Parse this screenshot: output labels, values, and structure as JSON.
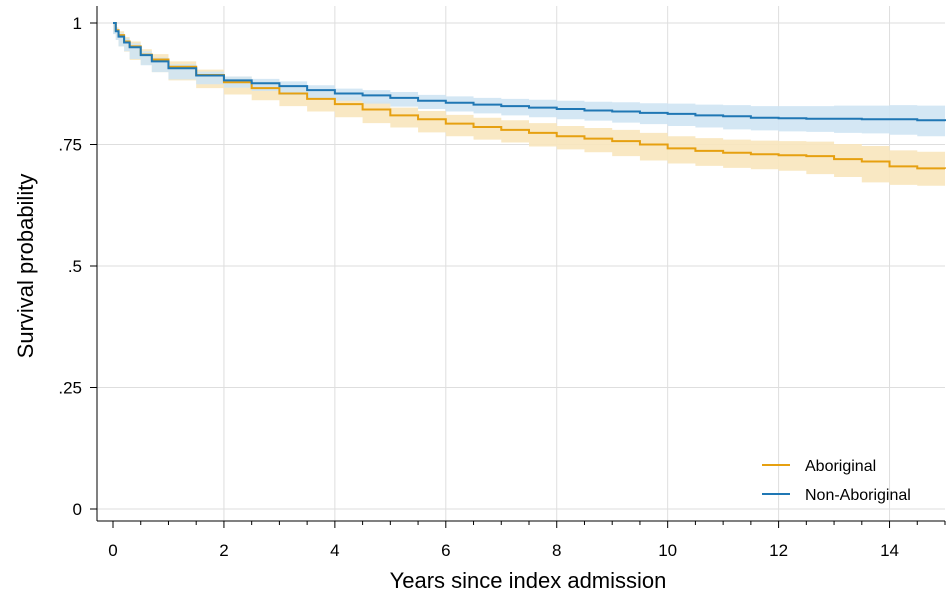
{
  "chart_data": {
    "type": "line",
    "title": "",
    "xlabel": "Years since index admission",
    "ylabel": "Survival probability",
    "xlim": [
      0,
      15
    ],
    "ylim": [
      0,
      1
    ],
    "x_ticks": [
      0,
      2,
      4,
      6,
      8,
      10,
      12,
      14
    ],
    "x_tick_labels": [
      "0",
      "2",
      "4",
      "6",
      "8",
      "10",
      "12",
      "14"
    ],
    "y_ticks": [
      0,
      0.25,
      0.5,
      0.75,
      1
    ],
    "y_tick_labels": [
      "0",
      ".25",
      ".5",
      ".75",
      "1"
    ],
    "grid": true,
    "legend_position": "bottom-right",
    "series": [
      {
        "name": "Aboriginal",
        "color": "#E6A010",
        "band_color": "#F8E6BC",
        "x": [
          0,
          0.05,
          0.1,
          0.2,
          0.3,
          0.5,
          0.7,
          1.0,
          1.5,
          2.0,
          2.5,
          3.0,
          3.5,
          4.0,
          4.5,
          5.0,
          5.5,
          6.0,
          6.5,
          7.0,
          7.5,
          8.0,
          8.5,
          9.0,
          9.5,
          10.0,
          10.5,
          11.0,
          11.5,
          12.0,
          12.5,
          13.0,
          13.5,
          14.0,
          14.5,
          15.0
        ],
        "y": [
          1.0,
          0.985,
          0.975,
          0.962,
          0.952,
          0.935,
          0.925,
          0.91,
          0.893,
          0.878,
          0.866,
          0.855,
          0.844,
          0.833,
          0.822,
          0.81,
          0.802,
          0.793,
          0.786,
          0.78,
          0.774,
          0.767,
          0.762,
          0.757,
          0.75,
          0.742,
          0.737,
          0.733,
          0.73,
          0.728,
          0.726,
          0.72,
          0.715,
          0.705,
          0.701,
          0.7
        ],
        "lower": [
          1.0,
          0.978,
          0.966,
          0.952,
          0.941,
          0.924,
          0.914,
          0.899,
          0.882,
          0.866,
          0.853,
          0.841,
          0.829,
          0.818,
          0.806,
          0.794,
          0.785,
          0.775,
          0.767,
          0.76,
          0.754,
          0.746,
          0.74,
          0.734,
          0.726,
          0.717,
          0.711,
          0.706,
          0.702,
          0.699,
          0.696,
          0.689,
          0.683,
          0.672,
          0.667,
          0.665
        ],
        "upper": [
          1.0,
          0.991,
          0.983,
          0.971,
          0.962,
          0.946,
          0.936,
          0.921,
          0.904,
          0.89,
          0.879,
          0.869,
          0.859,
          0.848,
          0.838,
          0.826,
          0.819,
          0.811,
          0.805,
          0.8,
          0.794,
          0.788,
          0.784,
          0.78,
          0.774,
          0.767,
          0.763,
          0.76,
          0.758,
          0.757,
          0.756,
          0.751,
          0.747,
          0.738,
          0.735,
          0.735
        ]
      },
      {
        "name": "Non-Aboriginal",
        "color": "#1F77B4",
        "band_color": "#CFE4F3",
        "x": [
          0,
          0.05,
          0.1,
          0.2,
          0.3,
          0.5,
          0.7,
          1.0,
          1.5,
          2.0,
          2.5,
          3.0,
          3.5,
          4.0,
          4.5,
          5.0,
          5.5,
          6.0,
          6.5,
          7.0,
          7.5,
          8.0,
          8.5,
          9.0,
          9.5,
          10.0,
          10.5,
          11.0,
          11.5,
          12.0,
          12.5,
          13.0,
          13.5,
          14.0,
          14.5,
          15.0
        ],
        "y": [
          1.0,
          0.983,
          0.972,
          0.96,
          0.95,
          0.934,
          0.921,
          0.907,
          0.892,
          0.882,
          0.876,
          0.87,
          0.862,
          0.855,
          0.851,
          0.846,
          0.84,
          0.836,
          0.832,
          0.829,
          0.826,
          0.823,
          0.82,
          0.818,
          0.815,
          0.813,
          0.81,
          0.808,
          0.805,
          0.804,
          0.803,
          0.803,
          0.802,
          0.802,
          0.8,
          0.798
        ],
        "lower": [
          1.0,
          0.977,
          0.965,
          0.952,
          0.942,
          0.926,
          0.913,
          0.899,
          0.884,
          0.874,
          0.867,
          0.86,
          0.852,
          0.845,
          0.84,
          0.834,
          0.828,
          0.823,
          0.818,
          0.814,
          0.81,
          0.806,
          0.802,
          0.799,
          0.795,
          0.792,
          0.788,
          0.785,
          0.781,
          0.779,
          0.777,
          0.776,
          0.774,
          0.773,
          0.77,
          0.767
        ],
        "upper": [
          1.0,
          0.989,
          0.979,
          0.968,
          0.958,
          0.942,
          0.929,
          0.915,
          0.9,
          0.89,
          0.885,
          0.88,
          0.872,
          0.865,
          0.862,
          0.858,
          0.852,
          0.849,
          0.846,
          0.844,
          0.842,
          0.84,
          0.838,
          0.837,
          0.835,
          0.834,
          0.832,
          0.831,
          0.829,
          0.829,
          0.829,
          0.83,
          0.83,
          0.831,
          0.83,
          0.829
        ]
      }
    ]
  }
}
